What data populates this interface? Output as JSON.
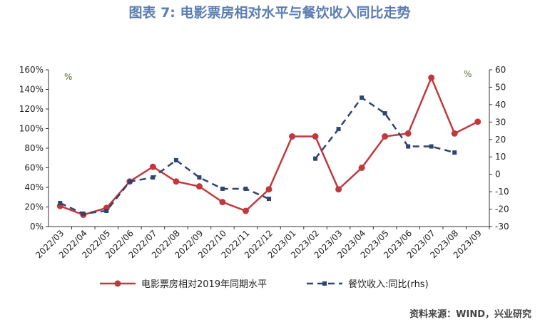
{
  "chart_data": {
    "type": "line",
    "title": "图表 7:  电影票房相对水平与餐饮收入同比走势",
    "y_unit": "%",
    "y2_unit": "%",
    "source": "资料来源：WIND，兴业研究",
    "categories": [
      "2022/03",
      "2022/04",
      "2022/05",
      "2022/06",
      "2022/07",
      "2022/08",
      "2022/09",
      "2022/10",
      "2022/11",
      "2022/12",
      "2023/01",
      "2023/02",
      "2023/03",
      "2023/04",
      "2023/05",
      "2023/06",
      "2023/07",
      "2023/08",
      "2023/09"
    ],
    "series": [
      {
        "name": "电影票房相对2019年同期水平",
        "color": "#c0393f",
        "marker": "circle",
        "values": [
          21,
          12,
          19,
          46,
          61,
          46,
          41,
          25,
          16,
          38,
          92,
          92,
          38,
          60,
          92,
          95,
          152,
          95,
          107
        ]
      },
      {
        "name": "餐饮收入:同比(rhs)",
        "color": "#2f4470",
        "marker": "square",
        "dashed": true,
        "axis": "y2",
        "values": [
          -16.5,
          -22.6,
          -21,
          -4.2,
          -1.8,
          8.1,
          -1.8,
          -8.3,
          -8.3,
          -14.1,
          null,
          9,
          26,
          44,
          35,
          16,
          16,
          12.5,
          null
        ]
      }
    ],
    "ylim": [
      0,
      160
    ],
    "yticks": [
      {
        "value": 0,
        "label": "0%"
      },
      {
        "value": 20,
        "label": "20%"
      },
      {
        "value": 40,
        "label": "40%"
      },
      {
        "value": 60,
        "label": "60%"
      },
      {
        "value": 80,
        "label": "80%"
      },
      {
        "value": 100,
        "label": "100%"
      },
      {
        "value": 120,
        "label": "120%"
      },
      {
        "value": 140,
        "label": "140%"
      },
      {
        "value": 160,
        "label": "160%"
      }
    ],
    "y2lim": [
      -30,
      60
    ],
    "y2ticks": [
      -30,
      -20,
      -10,
      0,
      10,
      20,
      30,
      40,
      50,
      60
    ],
    "legend": "bottom"
  }
}
